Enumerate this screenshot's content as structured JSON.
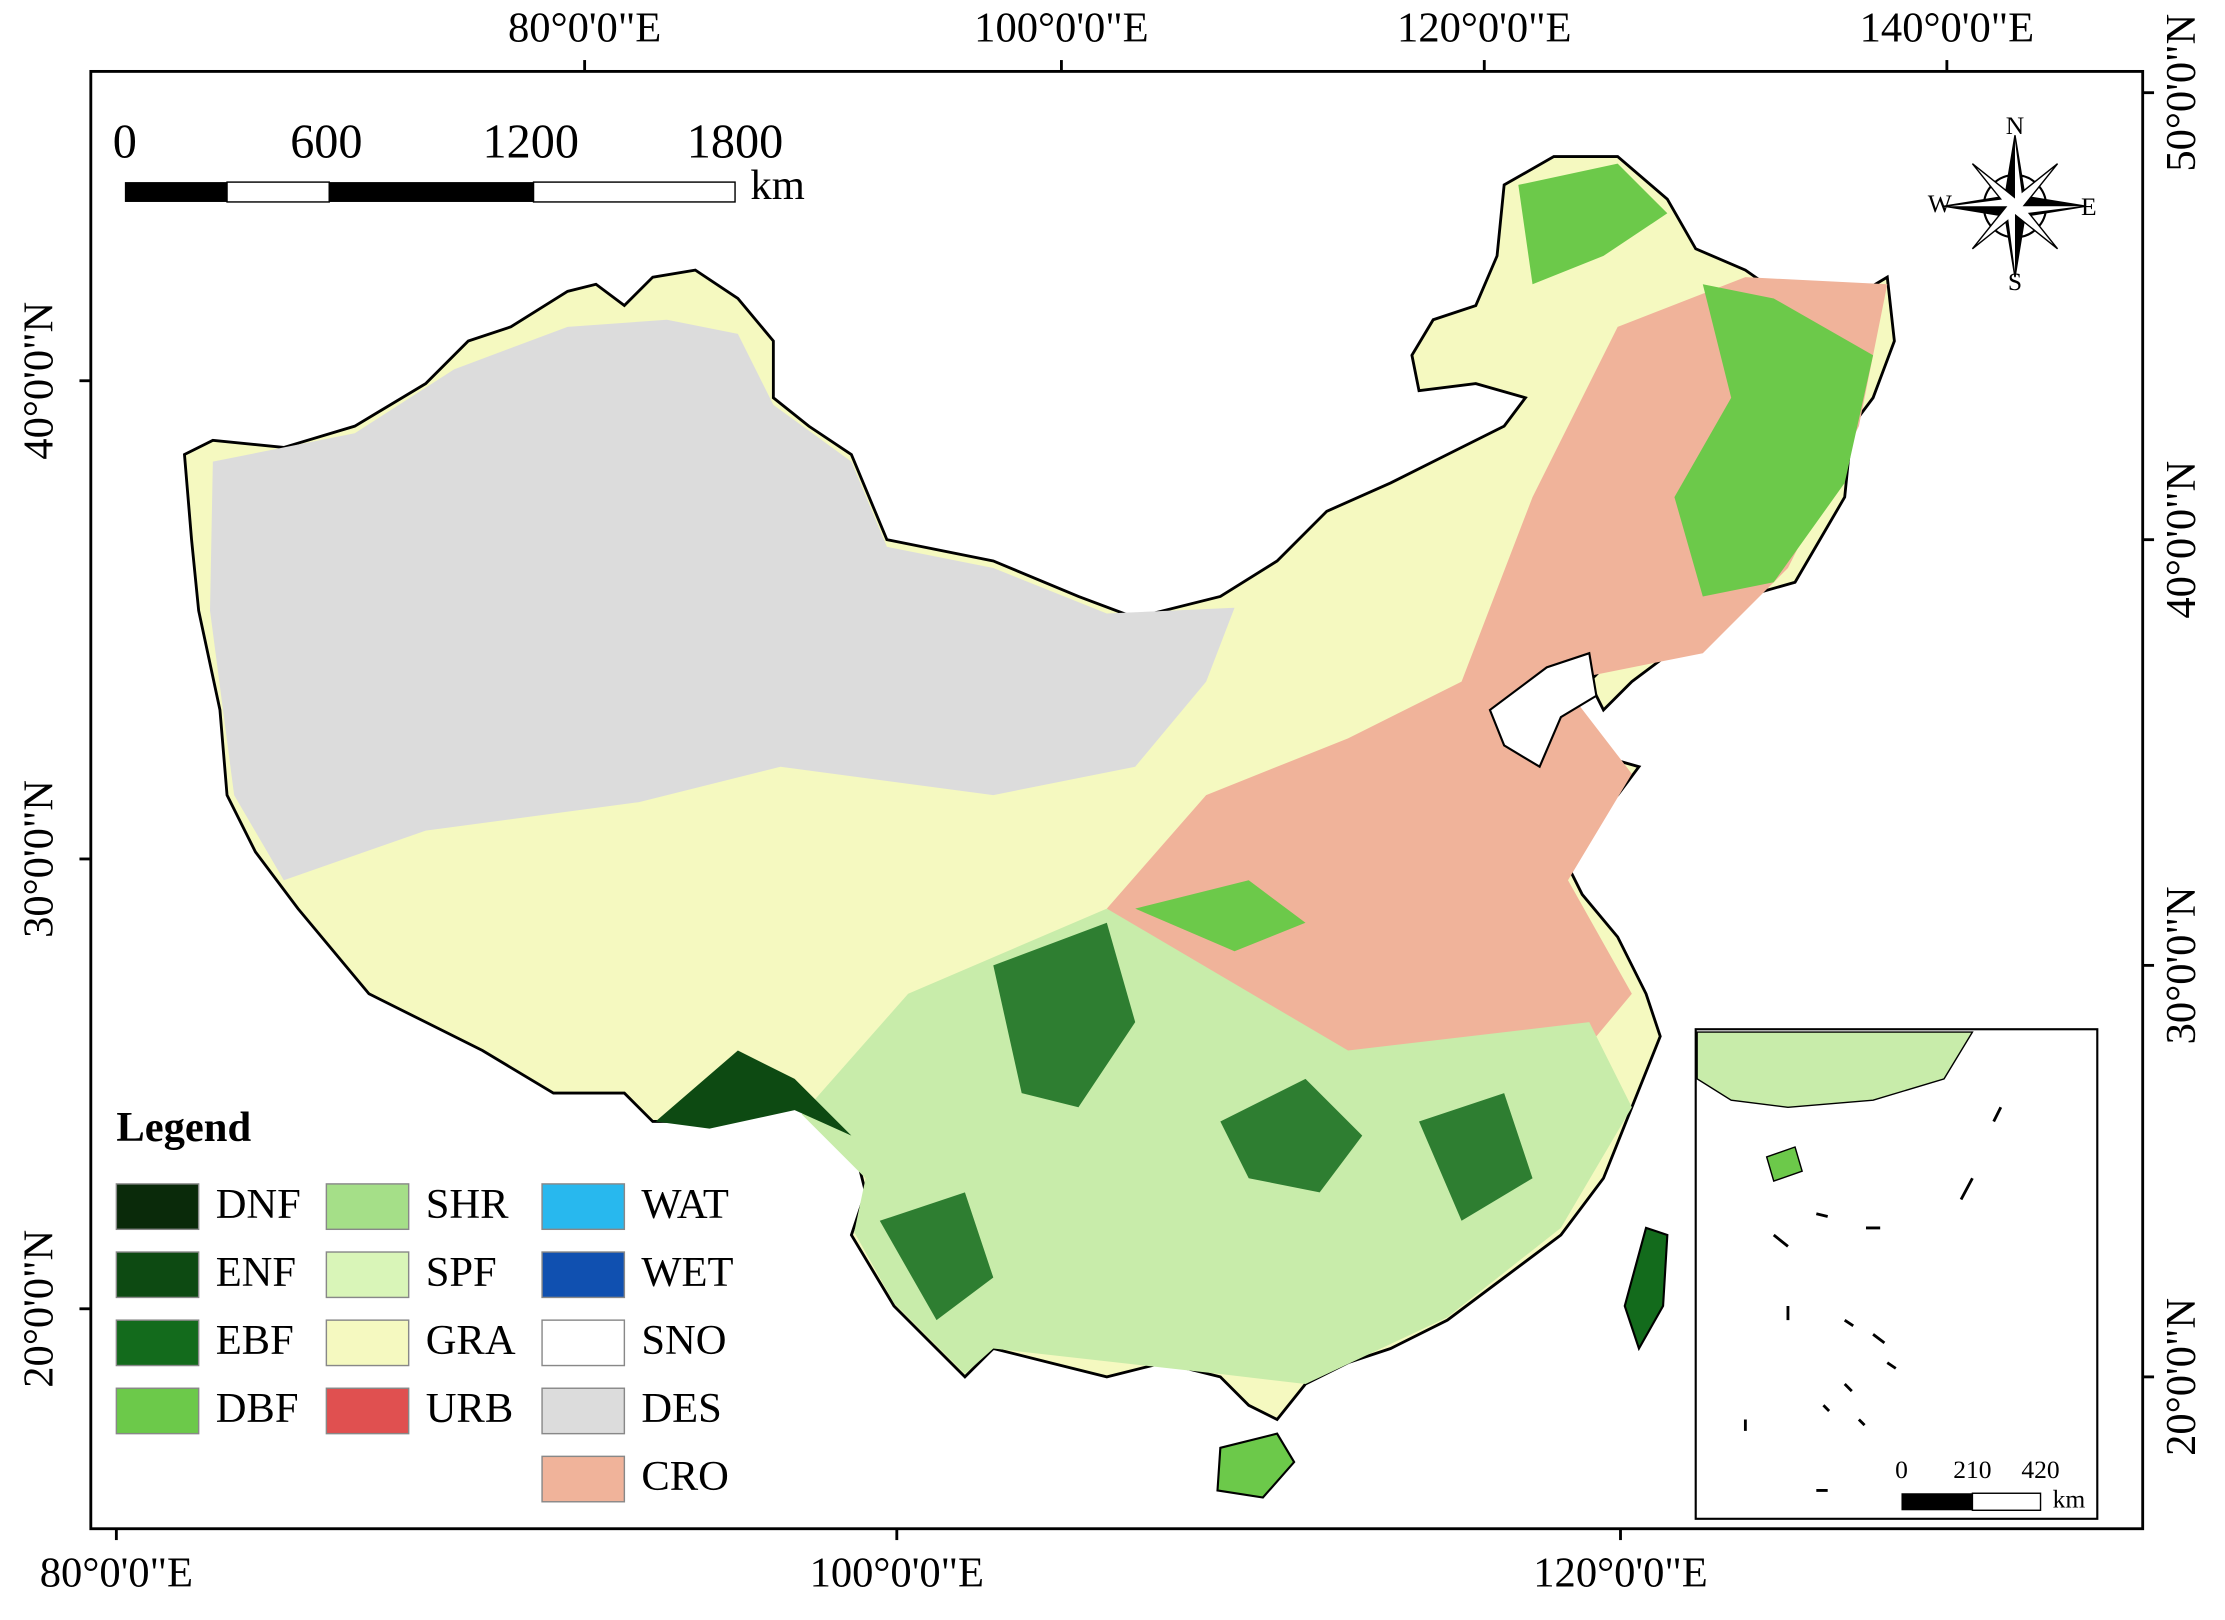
{
  "map": {
    "top_longitude_labels": [
      "80°0'0\"E",
      "100°0'0\"E",
      "120°0'0\"E",
      "140°0'0\"E"
    ],
    "bottom_longitude_labels": [
      "80°0'0\"E",
      "100°0'0\"E",
      "120°0'0\"E"
    ],
    "left_latitude_labels": [
      "40°0'0\"N",
      "30°0'0\"N",
      "20°0'0\"N"
    ],
    "right_latitude_labels": [
      "50°0'0\"N",
      "40°0'0\"N",
      "30°0'0\"N",
      "20°0'0\"N"
    ],
    "scale_bar": {
      "labels": [
        "0",
        "600",
        "1200",
        "1800"
      ],
      "unit": "km"
    },
    "compass": {
      "north": "N",
      "south": "S",
      "east": "E",
      "west": "W"
    },
    "legend": {
      "title": "Legend",
      "items": [
        {
          "label": "DNF",
          "color": "#0a2a0a"
        },
        {
          "label": "ENF",
          "color": "#0d4a12"
        },
        {
          "label": "EBF",
          "color": "#136b1c"
        },
        {
          "label": "DBF",
          "color": "#6cc94a"
        },
        {
          "label": "SHR",
          "color": "#a5df88"
        },
        {
          "label": "SPF",
          "color": "#d9f5b8"
        },
        {
          "label": "GRA",
          "color": "#f5f9c0"
        },
        {
          "label": "URB",
          "color": "#e05050"
        },
        {
          "label": "WAT",
          "color": "#28b8ee"
        },
        {
          "label": "WET",
          "color": "#1050b0"
        },
        {
          "label": "SNO",
          "color": "#ffffff"
        },
        {
          "label": "DES",
          "color": "#dcdcdc"
        },
        {
          "label": "CRO",
          "color": "#f0b39a"
        }
      ]
    },
    "inset": {
      "scale_labels": [
        "0",
        "210",
        "420"
      ],
      "unit": "km"
    }
  }
}
